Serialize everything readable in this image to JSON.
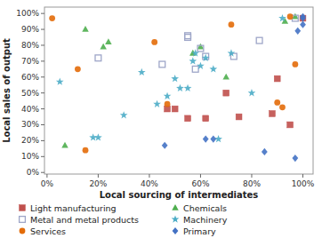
{
  "chart_data": {
    "type": "scatter",
    "xlabel": "Local sourcing of intermediates",
    "ylabel": "Local sales of output",
    "xlim": [
      -0.01,
      1.04
    ],
    "ylim": [
      -0.01,
      1.04
    ],
    "xticks": [
      {
        "value": 0.0,
        "label": "0%"
      },
      {
        "value": 0.2,
        "label": "20%"
      },
      {
        "value": 0.4,
        "label": "40%"
      },
      {
        "value": 0.6,
        "label": "60%"
      },
      {
        "value": 0.8,
        "label": "80%"
      },
      {
        "value": 1.0,
        "label": "100%"
      }
    ],
    "yticks": [
      {
        "value": 0.0,
        "label": "0%"
      },
      {
        "value": 0.1,
        "label": "10%"
      },
      {
        "value": 0.2,
        "label": "20%"
      },
      {
        "value": 0.3,
        "label": "30%"
      },
      {
        "value": 0.4,
        "label": "40%"
      },
      {
        "value": 0.5,
        "label": "50%"
      },
      {
        "value": 0.6,
        "label": "60%"
      },
      {
        "value": 0.7,
        "label": "70%"
      },
      {
        "value": 0.8,
        "label": "80%"
      },
      {
        "value": 0.9,
        "label": "90%"
      },
      {
        "value": 1.0,
        "label": "100%"
      }
    ],
    "grid": false,
    "legend": "bottom",
    "series": [
      {
        "name": "Light manufacturing",
        "color": "#C0504D",
        "marker": "square",
        "x": [
          0.47,
          0.5,
          0.55,
          0.62,
          0.7,
          0.75,
          0.88,
          0.9,
          0.95,
          1.0
        ],
        "values": [
          0.4,
          0.4,
          0.34,
          0.34,
          0.5,
          0.35,
          0.37,
          0.59,
          0.3,
          0.97
        ]
      },
      {
        "name": "Chemicals",
        "color": "#4EAE4E",
        "marker": "triangle",
        "x": [
          0.07,
          0.15,
          0.22,
          0.24,
          0.57,
          0.6,
          0.7,
          0.93,
          0.97
        ],
        "values": [
          0.17,
          0.9,
          0.79,
          0.82,
          0.75,
          0.79,
          0.6,
          0.95,
          0.98
        ]
      },
      {
        "name": "Metal and metal products",
        "color": "#9EA6C8",
        "marker": "square-open",
        "x": [
          0.2,
          0.45,
          0.55,
          0.55,
          0.58,
          0.6,
          0.62,
          0.73,
          0.83,
          0.97
        ],
        "values": [
          0.72,
          0.68,
          0.85,
          0.86,
          0.65,
          0.78,
          0.73,
          0.73,
          0.83,
          0.97
        ]
      },
      {
        "name": "Machinery",
        "color": "#4BACC6",
        "marker": "star",
        "x": [
          0.05,
          0.18,
          0.2,
          0.3,
          0.37,
          0.43,
          0.47,
          0.5,
          0.52,
          0.55,
          0.57,
          0.58,
          0.6,
          0.62,
          0.65,
          0.67,
          0.72,
          0.8,
          0.92
        ],
        "values": [
          0.57,
          0.22,
          0.22,
          0.36,
          0.63,
          0.43,
          0.48,
          0.59,
          0.53,
          0.53,
          0.7,
          0.75,
          0.67,
          0.72,
          0.65,
          0.21,
          0.75,
          0.5,
          0.97
        ]
      },
      {
        "name": "Services",
        "color": "#E36C09",
        "marker": "circle",
        "x": [
          0.02,
          0.12,
          0.15,
          0.42,
          0.47,
          0.72,
          0.9,
          0.92,
          0.95,
          0.97
        ],
        "values": [
          0.97,
          0.65,
          0.14,
          0.82,
          0.43,
          0.93,
          0.44,
          0.41,
          0.98,
          0.68
        ]
      },
      {
        "name": "Primary",
        "color": "#4472C4",
        "marker": "diamond",
        "x": [
          0.46,
          0.62,
          0.65,
          0.85,
          0.97,
          0.98,
          1.0,
          1.0,
          1.0
        ],
        "values": [
          0.17,
          0.21,
          0.21,
          0.13,
          0.09,
          0.89,
          0.98,
          0.97,
          0.93
        ]
      }
    ]
  }
}
